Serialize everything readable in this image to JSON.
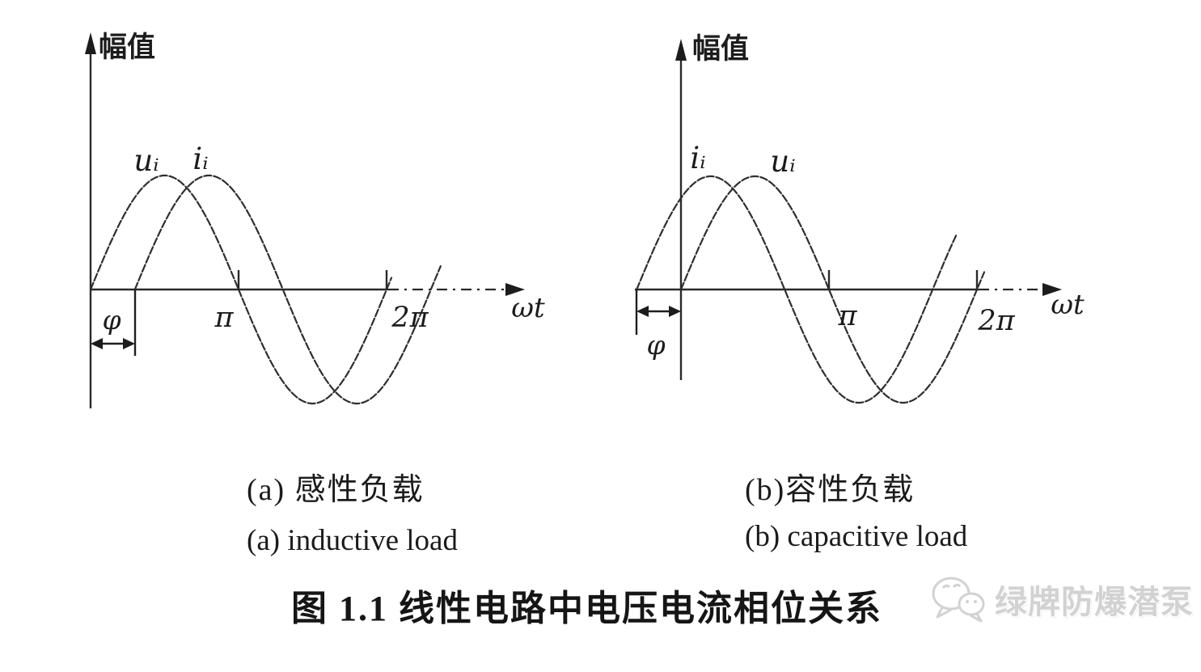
{
  "colors": {
    "background": "#ffffff",
    "ink": "#1c1c1c",
    "watermark": "#d2d2d2"
  },
  "figure_caption": "图 1.1 线性电路中电压电流相位关系",
  "watermark": {
    "icon": "wechat-logo-icon",
    "text": "绿牌防爆潜泵"
  },
  "chart_data": [
    {
      "id": "a",
      "type": "line",
      "subtitle_zh": "(a) 感性负载",
      "subtitle_en": "(a) inductive load",
      "axes": {
        "y_label": "幅值",
        "x_label": "ωt",
        "x_ticks": [
          {
            "label": "π",
            "value_rad": 3.14159
          },
          {
            "label": "2π",
            "value_rad": 6.28319
          }
        ],
        "grid": false
      },
      "amplitude_norm": 1,
      "series": [
        {
          "label": "uᵢ",
          "phase_rad": 0
        },
        {
          "label": "iᵢ",
          "phase_rad": -0.94
        }
      ],
      "phase_annotation": {
        "label": "φ",
        "between": [
          "uᵢ",
          "iᵢ"
        ]
      }
    },
    {
      "id": "b",
      "type": "line",
      "subtitle_zh": "(b)容性负载",
      "subtitle_en": "(b) capacitive load",
      "axes": {
        "y_label": "幅值",
        "x_label": "ωt",
        "x_ticks": [
          {
            "label": "π",
            "value_rad": 3.14159
          },
          {
            "label": "2π",
            "value_rad": 6.28319
          }
        ],
        "grid": false
      },
      "amplitude_norm": 1,
      "series": [
        {
          "label": "iᵢ",
          "phase_rad": 0.94
        },
        {
          "label": "uᵢ",
          "phase_rad": 0
        }
      ],
      "phase_annotation": {
        "label": "φ",
        "between": [
          "iᵢ",
          "uᵢ"
        ]
      }
    }
  ]
}
